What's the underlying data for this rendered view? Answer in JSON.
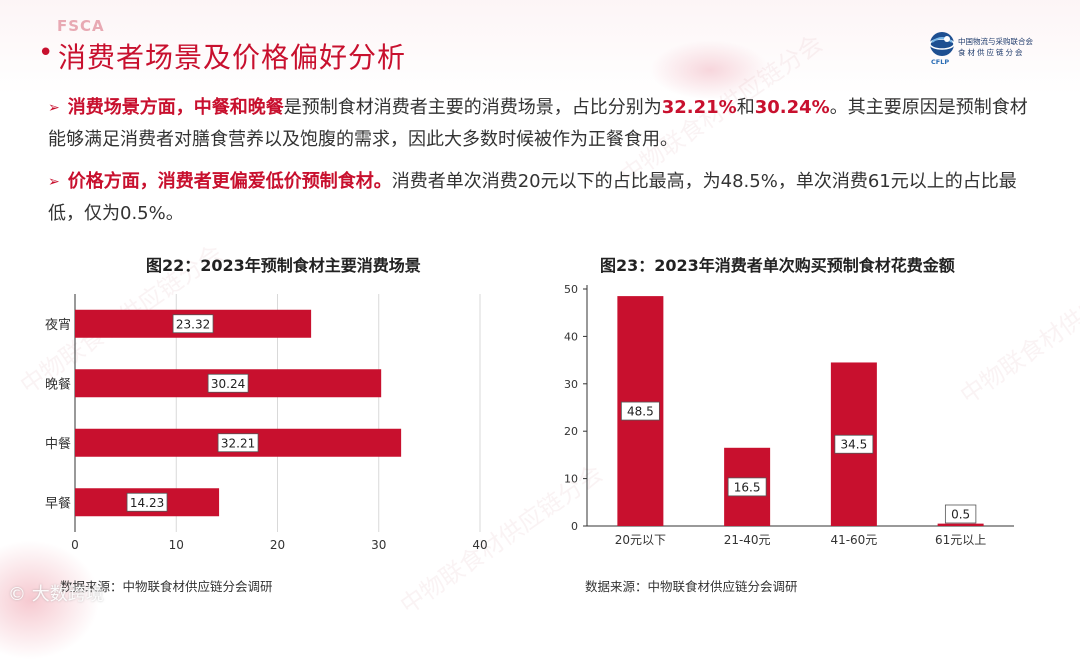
{
  "header": {
    "top_tag": "FSCA",
    "title": "消费者场景及价格偏好分析",
    "logo_line1": "中国物流与采购联合会",
    "logo_line2": "食材供应链分会",
    "logo_abbr": "CFLP"
  },
  "paragraphs": [
    {
      "arrow": "➢",
      "hl1": "消费场景方面，",
      "hl2": "中餐",
      "text1": "和",
      "hl3": "晚餐",
      "text2": "是预制食材消费者主要的消费场景，占比分别为",
      "hl4": "32.21%",
      "text3": "和",
      "hl5": "30.24%",
      "text4": "。其主要原因是预制食材能够满足消费者对膳食营养以及饱腹的需求，因此大多数时候被作为正餐食用。"
    },
    {
      "arrow": "➢",
      "hl1": "价格方面，消费者更偏爱低价预制食材。",
      "text1": "消费者单次消费20元以下的占比最高，为48.5%，单次消费61元以上的占比最低，仅为0.5%。"
    }
  ],
  "chart_data": [
    {
      "type": "bar",
      "orientation": "horizontal",
      "title": "图22：2023年预制食材主要消费场景",
      "categories": [
        "夜宵",
        "晚餐",
        "中餐",
        "早餐"
      ],
      "values": [
        23.32,
        30.24,
        32.21,
        14.23
      ],
      "value_labels": [
        "23.32",
        "30.24",
        "32.21",
        "14.23"
      ],
      "xlim": [
        0,
        40
      ],
      "xticks": [
        "0",
        "10",
        "20",
        "30",
        "40"
      ],
      "grid": true,
      "bar_color": "#c8102e",
      "source": "数据来源：中物联食材供应链分会调研"
    },
    {
      "type": "bar",
      "orientation": "vertical",
      "title": "图23：2023年消费者单次购买预制食材花费金额",
      "categories": [
        "20元以下",
        "21-40元",
        "41-60元",
        "61元以上"
      ],
      "values": [
        48.5,
        16.5,
        34.5,
        0.5
      ],
      "value_labels": [
        "48.5",
        "16.5",
        "34.5",
        "0.5"
      ],
      "ylim": [
        0,
        50
      ],
      "yticks": [
        "0",
        "10",
        "20",
        "30",
        "40",
        "50"
      ],
      "grid": false,
      "bar_color": "#c8102e",
      "source": "数据来源：中物联食材供应链分会调研"
    }
  ],
  "watermark": "中物联食材供应链分会",
  "bottom_logo": "© 大数跨境",
  "colors": {
    "accent": "#c8102e",
    "text": "#333333"
  }
}
